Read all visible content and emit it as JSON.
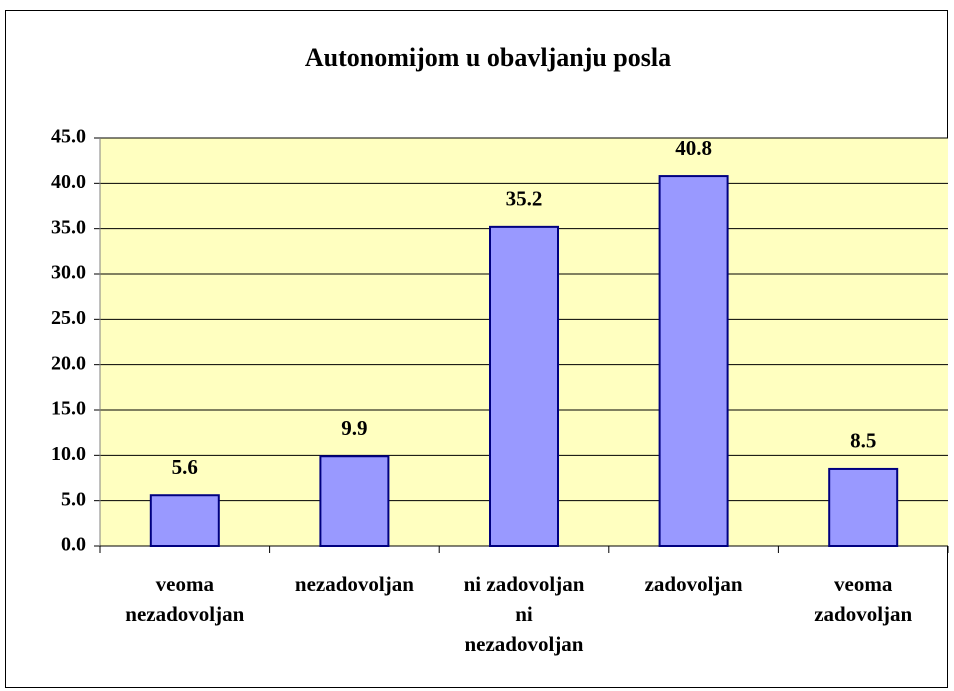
{
  "chart_data": {
    "type": "bar",
    "title": "Autonomijom u obavljanju posla",
    "categories": [
      [
        "veoma",
        "nezadovoljan"
      ],
      [
        "nezadovoljan"
      ],
      [
        "ni zadovoljan",
        "ni",
        "nezadovoljan"
      ],
      [
        "zadovoljan"
      ],
      [
        "veoma",
        "zadovoljan"
      ]
    ],
    "values": [
      5.6,
      9.9,
      35.2,
      40.8,
      8.5
    ],
    "color": "#9999ff",
    "ylim": [
      0,
      45
    ],
    "yticks": [
      {
        "value": 0,
        "label": "0.0"
      },
      {
        "value": 5,
        "label": "5.0"
      },
      {
        "value": 10,
        "label": "10.0"
      },
      {
        "value": 15,
        "label": "15.0"
      },
      {
        "value": 20,
        "label": "20.0"
      },
      {
        "value": 25,
        "label": "25.0"
      },
      {
        "value": 30,
        "label": "30.0"
      },
      {
        "value": 35,
        "label": "35.0"
      },
      {
        "value": 40,
        "label": "40.0"
      },
      {
        "value": 45,
        "label": "45.0"
      }
    ],
    "grid": true
  }
}
